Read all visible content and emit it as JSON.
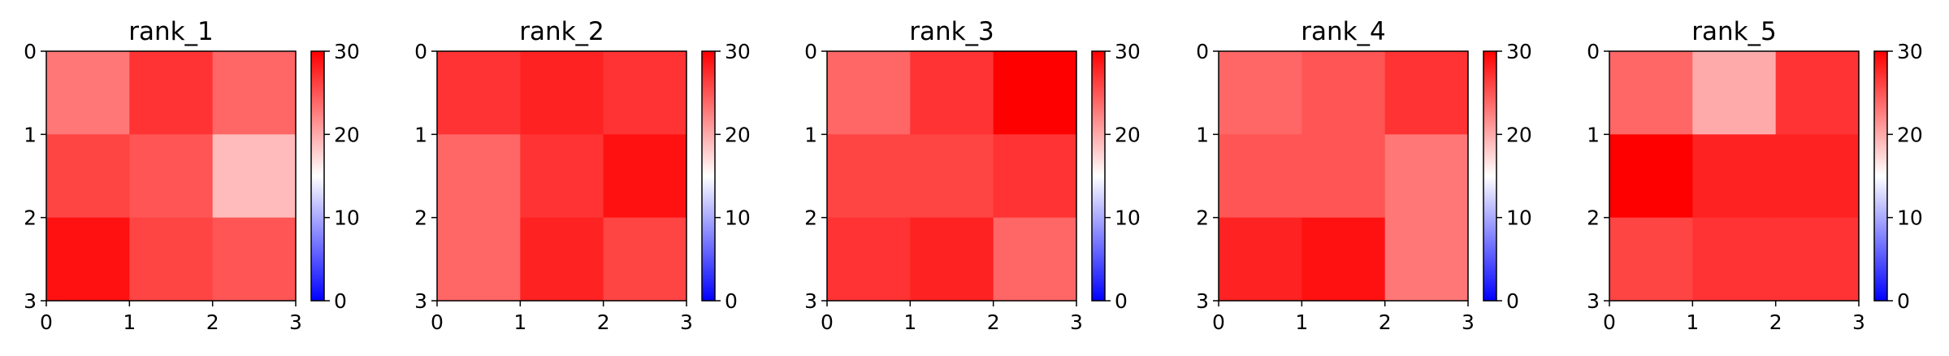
{
  "chart_data": [
    {
      "type": "heatmap",
      "title": "rank_1",
      "x_ticks": [
        "0",
        "1",
        "2",
        "3"
      ],
      "y_ticks": [
        "0",
        "1",
        "2",
        "3"
      ],
      "values": [
        [
          23,
          27,
          24
        ],
        [
          26,
          25,
          19
        ],
        [
          29,
          26,
          25
        ]
      ],
      "colorbar": {
        "ticks": [
          "0",
          "10",
          "20",
          "30"
        ],
        "range": [
          0,
          30
        ],
        "colormap": "bwr",
        "colors": [
          "#0000ff",
          "#ffffff",
          "#ff0000"
        ]
      }
    },
    {
      "type": "heatmap",
      "title": "rank_2",
      "x_ticks": [
        "0",
        "1",
        "2",
        "3"
      ],
      "y_ticks": [
        "0",
        "1",
        "2",
        "3"
      ],
      "values": [
        [
          27,
          28,
          27
        ],
        [
          24,
          27,
          29
        ],
        [
          24,
          28,
          26
        ]
      ],
      "colorbar": {
        "ticks": [
          "0",
          "10",
          "20",
          "30"
        ],
        "range": [
          0,
          30
        ],
        "colormap": "bwr",
        "colors": [
          "#0000ff",
          "#ffffff",
          "#ff0000"
        ]
      }
    },
    {
      "type": "heatmap",
      "title": "rank_3",
      "x_ticks": [
        "0",
        "1",
        "2",
        "3"
      ],
      "y_ticks": [
        "0",
        "1",
        "2",
        "3"
      ],
      "values": [
        [
          24,
          27,
          30
        ],
        [
          26,
          26,
          27
        ],
        [
          27,
          28,
          24
        ]
      ],
      "colorbar": {
        "ticks": [
          "0",
          "10",
          "20",
          "30"
        ],
        "range": [
          0,
          30
        ],
        "colormap": "bwr",
        "colors": [
          "#0000ff",
          "#ffffff",
          "#ff0000"
        ]
      }
    },
    {
      "type": "heatmap",
      "title": "rank_4",
      "x_ticks": [
        "0",
        "1",
        "2",
        "3"
      ],
      "y_ticks": [
        "0",
        "1",
        "2",
        "3"
      ],
      "values": [
        [
          24,
          25,
          27
        ],
        [
          25,
          25,
          23
        ],
        [
          28,
          29,
          23
        ]
      ],
      "colorbar": {
        "ticks": [
          "0",
          "10",
          "20",
          "30"
        ],
        "range": [
          0,
          30
        ],
        "colormap": "bwr",
        "colors": [
          "#0000ff",
          "#ffffff",
          "#ff0000"
        ]
      }
    },
    {
      "type": "heatmap",
      "title": "rank_5",
      "x_ticks": [
        "0",
        "1",
        "2",
        "3"
      ],
      "y_ticks": [
        "0",
        "1",
        "2",
        "3"
      ],
      "values": [
        [
          24,
          20,
          27
        ],
        [
          30,
          28,
          28
        ],
        [
          26,
          27,
          27
        ]
      ],
      "colorbar": {
        "ticks": [
          "0",
          "10",
          "20",
          "30"
        ],
        "range": [
          0,
          30
        ],
        "colormap": "bwr",
        "colors": [
          "#0000ff",
          "#ffffff",
          "#ff0000"
        ]
      }
    }
  ]
}
